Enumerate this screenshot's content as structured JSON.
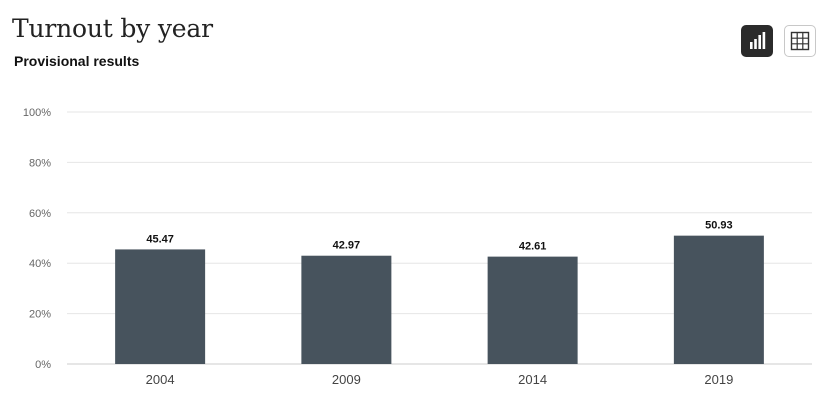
{
  "header": {
    "title": "Turnout by year",
    "subtitle": "Provisional results"
  },
  "view_toggle": {
    "active": "chart",
    "chart_icon": "bar-chart-icon",
    "table_icon": "table-grid-icon"
  },
  "colors": {
    "bar": "#47535d",
    "grid": "#e6e6e6",
    "axis": "#cccccc",
    "toggle_active_bg": "#2b2b2b"
  },
  "chart_data": {
    "type": "bar",
    "title": "Turnout by year",
    "subtitle": "Provisional results",
    "categories": [
      "2004",
      "2009",
      "2014",
      "2019"
    ],
    "values": [
      45.47,
      42.97,
      42.61,
      50.93
    ],
    "value_labels": [
      "45.47",
      "42.97",
      "42.61",
      "50.93"
    ],
    "ylim": [
      0,
      100
    ],
    "yticks": [
      0,
      20,
      40,
      60,
      80,
      100
    ],
    "ytick_labels": [
      "0%",
      "20%",
      "40%",
      "60%",
      "80%",
      "100%"
    ],
    "xlabel": "",
    "ylabel": "",
    "grid": true,
    "legend": false
  }
}
